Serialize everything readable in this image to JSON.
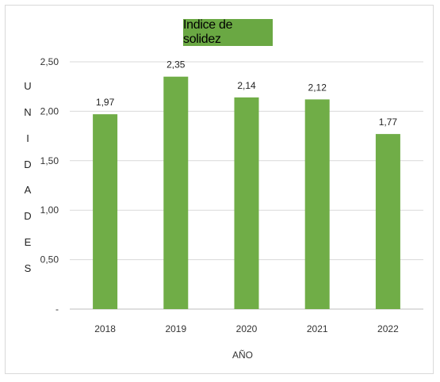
{
  "chart_data": {
    "type": "bar",
    "title": "Indice de solidez",
    "xlabel": "AÑO",
    "ylabel": "UNIDADES",
    "categories": [
      "2018",
      "2019",
      "2020",
      "2021",
      "2022"
    ],
    "values": [
      1.97,
      2.35,
      2.14,
      2.12,
      1.77
    ],
    "data_labels": [
      "1,97",
      "2,35",
      "2,14",
      "2,12",
      "1,77"
    ],
    "ylim": [
      0,
      2.5
    ],
    "yticks": [
      0,
      0.5,
      1.0,
      1.5,
      2.0,
      2.5
    ],
    "ytick_labels": [
      "-",
      "0,50",
      "1,00",
      "1,50",
      "2,00",
      "2,50"
    ],
    "grid": true,
    "legend": "none",
    "bar_color": "#70ad47",
    "title_bg": "#6aa843"
  }
}
